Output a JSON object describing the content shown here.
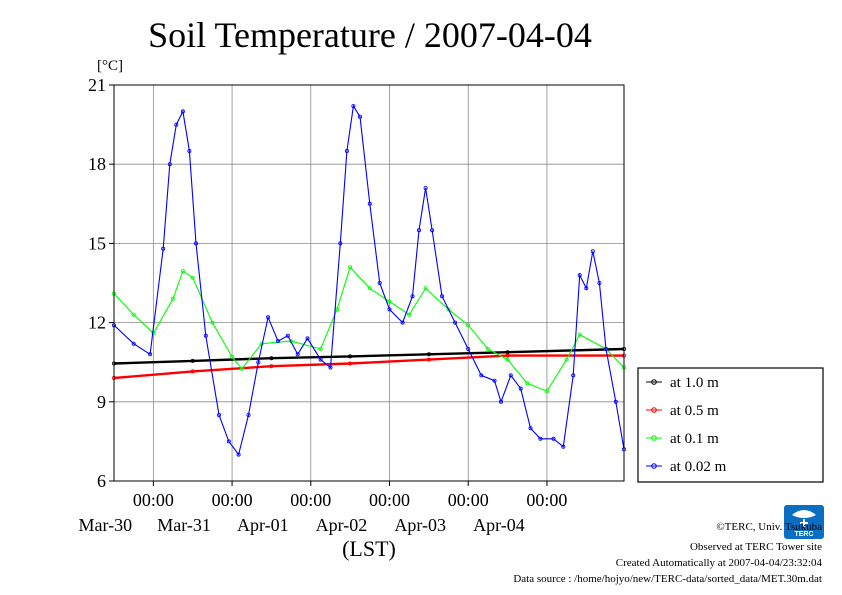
{
  "credits": {
    "copyright": "©TERC, Univ. Tsukuba",
    "observed": "Observed at TERC Tower site",
    "created": "Created Automatically at 2007-04-04/23:32:04",
    "source": "Data source : /home/hojyo/new/TERC-data/sorted_data/MET.30m.dat"
  },
  "logo_text": "TERC",
  "chart_data": {
    "type": "line",
    "title": "Soil Temperature / 2007-04-04",
    "ylabel": "[°C]",
    "xlabel": "(LST)",
    "x_range": [
      "2007-03-29T12:00",
      "2007-04-04T23:30"
    ],
    "ylim": [
      6,
      21
    ],
    "yticks": [
      6,
      9,
      12,
      15,
      18,
      21
    ],
    "x_ticks": [
      {
        "t": "2007-03-30T00:00",
        "time": "00:00",
        "date": "Mar-30"
      },
      {
        "t": "2007-03-31T00:00",
        "time": "00:00",
        "date": "Mar-31"
      },
      {
        "t": "2007-04-01T00:00",
        "time": "00:00",
        "date": "Apr-01"
      },
      {
        "t": "2007-04-02T00:00",
        "time": "00:00",
        "date": "Apr-02"
      },
      {
        "t": "2007-04-03T00:00",
        "time": "00:00",
        "date": "Apr-03"
      },
      {
        "t": "2007-04-04T00:00",
        "time": "00:00",
        "date": "Apr-04"
      }
    ],
    "grid": true,
    "legend_position": "right",
    "series": [
      {
        "name": "at 1.0 m",
        "color": "#000000",
        "points": [
          [
            "2007-03-29T12:00",
            10.45
          ],
          [
            "2007-03-30T12:00",
            10.55
          ],
          [
            "2007-03-31T12:00",
            10.65
          ],
          [
            "2007-04-01T12:00",
            10.72
          ],
          [
            "2007-04-02T12:00",
            10.8
          ],
          [
            "2007-04-03T12:00",
            10.88
          ],
          [
            "2007-04-04T23:30",
            11.0
          ]
        ]
      },
      {
        "name": "at 0.5 m",
        "color": "#ff0000",
        "points": [
          [
            "2007-03-29T12:00",
            9.9
          ],
          [
            "2007-03-30T12:00",
            10.15
          ],
          [
            "2007-03-31T12:00",
            10.35
          ],
          [
            "2007-04-01T12:00",
            10.45
          ],
          [
            "2007-04-02T12:00",
            10.6
          ],
          [
            "2007-04-03T12:00",
            10.75
          ],
          [
            "2007-04-04T23:30",
            10.75
          ]
        ]
      },
      {
        "name": "at 0.1 m",
        "color": "#00ff00",
        "points": [
          [
            "2007-03-29T12:00",
            13.1
          ],
          [
            "2007-03-29T18:00",
            12.3
          ],
          [
            "2007-03-30T00:00",
            11.6
          ],
          [
            "2007-03-30T06:00",
            12.9
          ],
          [
            "2007-03-30T09:00",
            13.95
          ],
          [
            "2007-03-30T12:00",
            13.7
          ],
          [
            "2007-03-30T18:00",
            12.0
          ],
          [
            "2007-03-31T00:00",
            10.7
          ],
          [
            "2007-03-31T03:00",
            10.25
          ],
          [
            "2007-03-31T09:00",
            11.2
          ],
          [
            "2007-03-31T18:00",
            11.3
          ],
          [
            "2007-04-01T03:00",
            11.0
          ],
          [
            "2007-04-01T08:00",
            12.5
          ],
          [
            "2007-04-01T12:00",
            14.1
          ],
          [
            "2007-04-01T18:00",
            13.3
          ],
          [
            "2007-04-02T00:00",
            12.8
          ],
          [
            "2007-04-02T06:00",
            12.3
          ],
          [
            "2007-04-02T11:00",
            13.3
          ],
          [
            "2007-04-02T18:00",
            12.5
          ],
          [
            "2007-04-03T00:00",
            11.9
          ],
          [
            "2007-04-03T06:00",
            11.0
          ],
          [
            "2007-04-03T12:00",
            10.6
          ],
          [
            "2007-04-03T18:00",
            9.7
          ],
          [
            "2007-04-04T00:00",
            9.4
          ],
          [
            "2007-04-04T06:00",
            10.6
          ],
          [
            "2007-04-04T10:00",
            11.55
          ],
          [
            "2007-04-04T18:00",
            11.0
          ],
          [
            "2007-04-04T23:30",
            10.3
          ]
        ]
      },
      {
        "name": "at 0.02 m",
        "color": "#0000ff",
        "points": [
          [
            "2007-03-29T12:00",
            11.9
          ],
          [
            "2007-03-29T18:00",
            11.2
          ],
          [
            "2007-03-29T23:00",
            10.8
          ],
          [
            "2007-03-30T03:00",
            14.8
          ],
          [
            "2007-03-30T05:00",
            18.0
          ],
          [
            "2007-03-30T07:00",
            19.5
          ],
          [
            "2007-03-30T09:00",
            20.0
          ],
          [
            "2007-03-30T11:00",
            18.5
          ],
          [
            "2007-03-30T13:00",
            15.0
          ],
          [
            "2007-03-30T16:00",
            11.5
          ],
          [
            "2007-03-30T20:00",
            8.5
          ],
          [
            "2007-03-30T23:00",
            7.5
          ],
          [
            "2007-03-31T02:00",
            7.0
          ],
          [
            "2007-03-31T05:00",
            8.5
          ],
          [
            "2007-03-31T08:00",
            10.5
          ],
          [
            "2007-03-31T11:00",
            12.2
          ],
          [
            "2007-03-31T14:00",
            11.3
          ],
          [
            "2007-03-31T17:00",
            11.5
          ],
          [
            "2007-03-31T20:00",
            10.8
          ],
          [
            "2007-03-31T23:00",
            11.4
          ],
          [
            "2007-04-01T03:00",
            10.6
          ],
          [
            "2007-04-01T06:00",
            10.3
          ],
          [
            "2007-04-01T09:00",
            15.0
          ],
          [
            "2007-04-01T11:00",
            18.5
          ],
          [
            "2007-04-01T13:00",
            20.2
          ],
          [
            "2007-04-01T15:00",
            19.8
          ],
          [
            "2007-04-01T18:00",
            16.5
          ],
          [
            "2007-04-01T21:00",
            13.5
          ],
          [
            "2007-04-02T00:00",
            12.5
          ],
          [
            "2007-04-02T04:00",
            12.0
          ],
          [
            "2007-04-02T07:00",
            13.0
          ],
          [
            "2007-04-02T09:00",
            15.5
          ],
          [
            "2007-04-02T11:00",
            17.1
          ],
          [
            "2007-04-02T13:00",
            15.5
          ],
          [
            "2007-04-02T16:00",
            13.0
          ],
          [
            "2007-04-02T20:00",
            12.0
          ],
          [
            "2007-04-03T00:00",
            11.0
          ],
          [
            "2007-04-03T04:00",
            10.0
          ],
          [
            "2007-04-03T08:00",
            9.8
          ],
          [
            "2007-04-03T10:00",
            9.0
          ],
          [
            "2007-04-03T13:00",
            10.0
          ],
          [
            "2007-04-03T16:00",
            9.5
          ],
          [
            "2007-04-03T19:00",
            8.0
          ],
          [
            "2007-04-03T22:00",
            7.6
          ],
          [
            "2007-04-04T02:00",
            7.6
          ],
          [
            "2007-04-04T05:00",
            7.3
          ],
          [
            "2007-04-04T08:00",
            10.0
          ],
          [
            "2007-04-04T10:00",
            13.8
          ],
          [
            "2007-04-04T12:00",
            13.3
          ],
          [
            "2007-04-04T14:00",
            14.7
          ],
          [
            "2007-04-04T16:00",
            13.5
          ],
          [
            "2007-04-04T18:00",
            11.0
          ],
          [
            "2007-04-04T21:00",
            9.0
          ],
          [
            "2007-04-04T23:30",
            7.2
          ]
        ]
      }
    ]
  }
}
